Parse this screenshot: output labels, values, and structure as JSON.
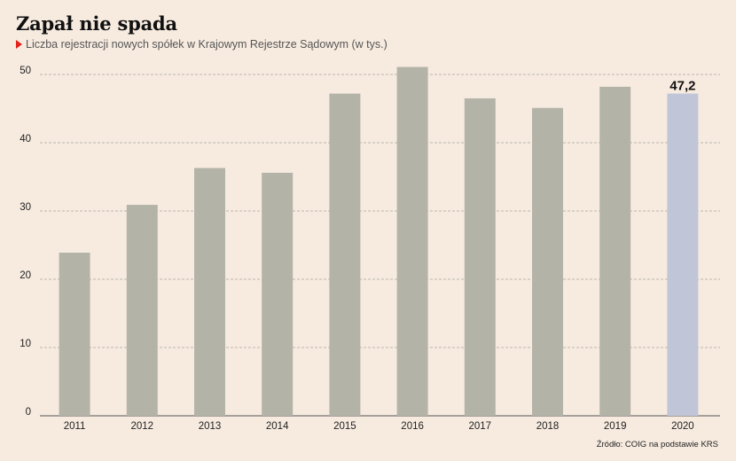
{
  "title": "Zapał nie spada",
  "subtitle": "Liczba rejestracji nowych spółek w Krajowym Rejestrze Sądowym (w tys.)",
  "source": "Źródło: COIG na podstawie KRS",
  "colors": {
    "background": "#f7ebe0",
    "bar": "#b4b3a8",
    "bar_highlight": "#c0c6d8",
    "marker": "#e2231a",
    "grid": "#a8a39a"
  },
  "chart_data": {
    "type": "bar",
    "title": "Zapał nie spada",
    "subtitle": "Liczba rejestracji nowych spółek w Krajowym Rejestrze Sądowym (w tys.)",
    "xlabel": "",
    "ylabel": "",
    "categories": [
      "2011",
      "2012",
      "2013",
      "2014",
      "2015",
      "2016",
      "2017",
      "2018",
      "2019",
      "2020"
    ],
    "values": [
      23.9,
      30.9,
      36.3,
      35.6,
      47.2,
      51.1,
      46.5,
      45.1,
      48.2,
      47.2
    ],
    "highlight_index": 9,
    "data_labels": [
      {
        "index": 9,
        "text": "47,2"
      }
    ],
    "ylim": [
      0,
      50
    ],
    "yticks": [
      0,
      10,
      20,
      30,
      40,
      50
    ],
    "ytick_labels": [
      "0",
      "10",
      "20",
      "30",
      "40",
      "50"
    ],
    "grid": true,
    "grid_style": "dashed horizontal"
  }
}
